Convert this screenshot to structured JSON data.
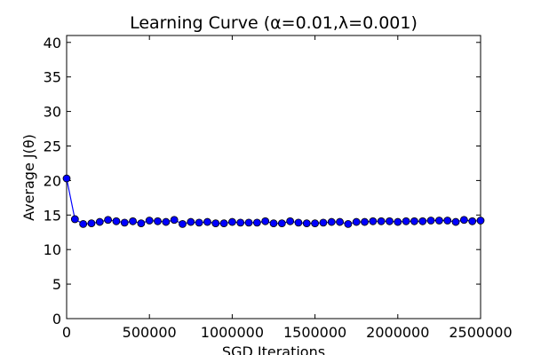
{
  "chart_data": {
    "type": "line",
    "title": "Learning Curve (α=0.01,λ=0.001)",
    "xlabel": "SGD Iterations",
    "ylabel": "Average J(θ)",
    "xlim": [
      0,
      2500000
    ],
    "ylim": [
      0,
      41
    ],
    "xticks": [
      0,
      500000,
      1000000,
      1500000,
      2000000,
      2500000
    ],
    "xtick_labels": [
      "0",
      "500000",
      "1000000",
      "1500000",
      "2000000",
      "2500000"
    ],
    "yticks": [
      0,
      5,
      10,
      15,
      20,
      25,
      30,
      35,
      40
    ],
    "ytick_labels": [
      "0",
      "5",
      "10",
      "15",
      "20",
      "25",
      "30",
      "35",
      "40"
    ],
    "grid": false,
    "legend": "none",
    "series": [
      {
        "color": "#0000ff",
        "marker": "circle",
        "x": [
          0,
          50000,
          100000,
          150000,
          200000,
          250000,
          300000,
          350000,
          400000,
          450000,
          500000,
          550000,
          600000,
          650000,
          700000,
          750000,
          800000,
          850000,
          900000,
          950000,
          1000000,
          1050000,
          1100000,
          1150000,
          1200000,
          1250000,
          1300000,
          1350000,
          1400000,
          1450000,
          1500000,
          1550000,
          1600000,
          1650000,
          1700000,
          1750000,
          1800000,
          1850000,
          1900000,
          1950000,
          2000000,
          2050000,
          2100000,
          2150000,
          2200000,
          2250000,
          2300000,
          2350000,
          2400000,
          2450000,
          2500000
        ],
        "y": [
          20.3,
          14.4,
          13.7,
          13.8,
          14.0,
          14.3,
          14.1,
          13.9,
          14.1,
          13.8,
          14.2,
          14.1,
          14.0,
          14.3,
          13.7,
          14.0,
          13.9,
          14.0,
          13.8,
          13.8,
          14.0,
          13.9,
          13.9,
          13.9,
          14.1,
          13.8,
          13.8,
          14.1,
          13.9,
          13.8,
          13.8,
          13.9,
          14.0,
          14.0,
          13.7,
          14.0,
          14.0,
          14.1,
          14.1,
          14.1,
          14.0,
          14.1,
          14.1,
          14.1,
          14.2,
          14.2,
          14.2,
          14.0,
          14.3,
          14.1,
          14.2
        ]
      }
    ]
  }
}
